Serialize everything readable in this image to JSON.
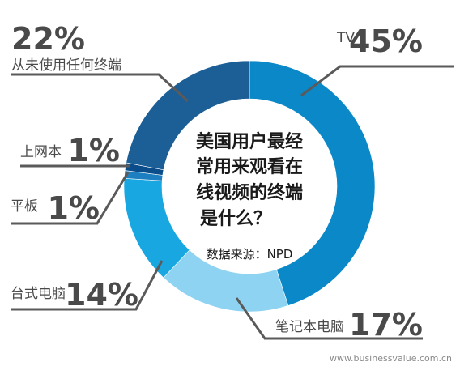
{
  "chart_data": {
    "type": "pie",
    "title_lines": [
      "美国用户最经",
      "常用来观看在",
      "线视频的终端",
      "是什么？"
    ],
    "source": "数据来源：NPD",
    "categories": [
      "TV",
      "笔记本电脑",
      "台式电脑",
      "平板",
      "上网本",
      "从未使用任何终端"
    ],
    "values": [
      45,
      17,
      14,
      1,
      1,
      22
    ],
    "value_labels": [
      "45%",
      "17%",
      "14%",
      "1%",
      "1%",
      "22%"
    ],
    "colors": [
      "#0a88c8",
      "#8fd3f2",
      "#19a7e2",
      "#1e7fc0",
      "#0b4d8a",
      "#1c5f97"
    ],
    "style": "donut"
  },
  "watermark": "www.businessvalue.com.cn"
}
